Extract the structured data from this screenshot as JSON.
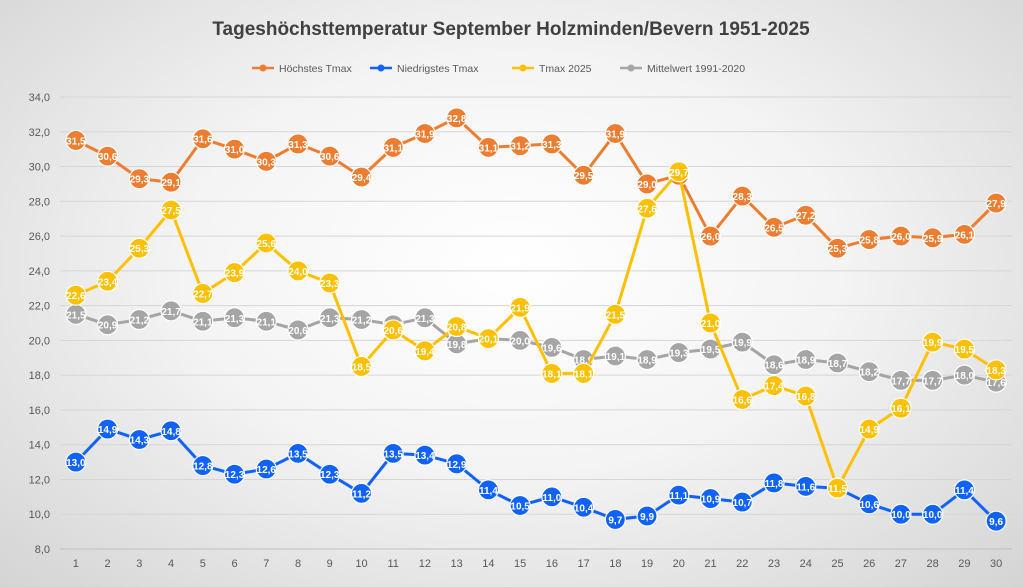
{
  "chart_data": {
    "type": "line",
    "title": "Tageshöchsttemperatur September Holzminden/Bevern 1951-2025",
    "xlabel": "",
    "ylabel": "",
    "ylim": [
      8.0,
      34.0
    ],
    "ytick_step": 2.0,
    "grid": true,
    "legend_position": "top",
    "categories": [
      "1",
      "2",
      "3",
      "4",
      "5",
      "6",
      "7",
      "8",
      "9",
      "10",
      "11",
      "12",
      "13",
      "14",
      "15",
      "16",
      "17",
      "18",
      "19",
      "20",
      "21",
      "22",
      "23",
      "24",
      "25",
      "26",
      "27",
      "28",
      "29",
      "30"
    ],
    "series": [
      {
        "name": "Höchstes Tmax",
        "color": "#ED7D31",
        "values": [
          31.5,
          30.6,
          29.3,
          29.1,
          31.6,
          31.0,
          30.3,
          31.3,
          30.6,
          29.4,
          31.1,
          31.9,
          32.8,
          31.1,
          31.2,
          31.3,
          29.5,
          31.9,
          29.0,
          29.5,
          26.0,
          28.3,
          26.5,
          27.2,
          25.3,
          25.8,
          26.0,
          25.9,
          26.1,
          27.9
        ]
      },
      {
        "name": "Niedrigstes Tmax",
        "color": "#0F62FE",
        "values": [
          13.0,
          14.9,
          14.3,
          14.8,
          12.8,
          12.3,
          12.6,
          13.5,
          12.3,
          11.2,
          13.5,
          13.4,
          12.9,
          11.4,
          10.5,
          11.0,
          10.4,
          9.7,
          9.9,
          11.1,
          10.9,
          10.7,
          11.8,
          11.6,
          11.5,
          10.6,
          10.0,
          10.0,
          11.4,
          9.6
        ]
      },
      {
        "name": "Tmax 2025",
        "color": "#FFC000",
        "values": [
          22.6,
          23.4,
          25.3,
          27.5,
          22.7,
          23.9,
          25.6,
          24.0,
          23.3,
          18.5,
          20.6,
          19.4,
          20.8,
          20.1,
          21.9,
          18.1,
          18.1,
          21.5,
          27.6,
          29.7,
          21.0,
          16.6,
          17.4,
          16.8,
          11.5,
          14.9,
          16.1,
          19.9,
          19.5,
          18.3
        ]
      },
      {
        "name": "Mittelwert 1991-2020",
        "color": "#A5A5A5",
        "values": [
          21.5,
          20.9,
          21.2,
          21.7,
          21.1,
          21.3,
          21.1,
          20.6,
          21.3,
          21.2,
          20.9,
          21.3,
          19.8,
          20.1,
          20.0,
          19.6,
          18.9,
          19.1,
          18.9,
          19.3,
          19.5,
          19.9,
          18.6,
          18.9,
          18.7,
          18.2,
          17.7,
          17.7,
          18.0,
          17.6
        ]
      }
    ]
  }
}
